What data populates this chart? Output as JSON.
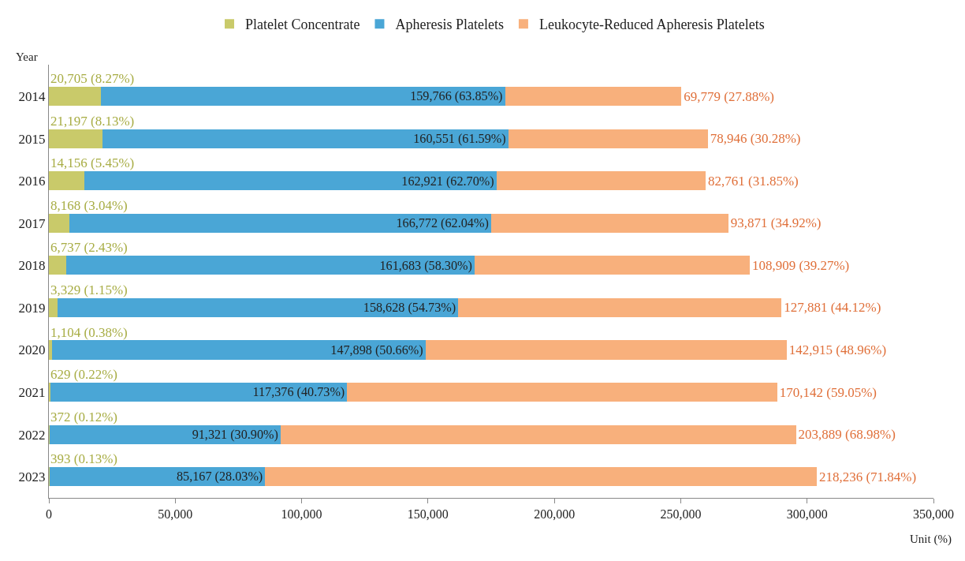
{
  "chart_data": {
    "type": "bar",
    "orientation": "horizontal",
    "stacked": true,
    "ylabel": "Year",
    "xlabel": "Unit (%)",
    "categories": [
      "2014",
      "2015",
      "2016",
      "2017",
      "2018",
      "2019",
      "2020",
      "2021",
      "2022",
      "2023"
    ],
    "series": [
      {
        "name": "Platelet Concentrate",
        "color": "#c9ca6a",
        "values": [
          20705,
          21197,
          14156,
          8168,
          6737,
          3329,
          1104,
          629,
          372,
          393
        ],
        "value_labels": [
          "20,705 (8.27%)",
          "21,197 (8.13%)",
          "14,156 (5.45%)",
          "8,168 (3.04%)",
          "6,737 (2.43%)",
          "3,329 (1.15%)",
          "1,104 (0.38%)",
          "629 (0.22%)",
          "372 (0.12%)",
          "393 (0.13%)"
        ]
      },
      {
        "name": "Apheresis Platelets",
        "color": "#4aa6d6",
        "values": [
          159766,
          160551,
          162921,
          166772,
          161683,
          158628,
          147898,
          117376,
          91321,
          85167
        ],
        "value_labels": [
          "159,766 (63.85%)",
          "160,551 (61.59%)",
          "162,921 (62.70%)",
          "166,772 (62.04%)",
          "161,683 (58.30%)",
          "158,628 (54.73%)",
          "147,898 (50.66%)",
          "117,376 (40.73%)",
          "91,321 (30.90%)",
          "85,167 (28.03%)"
        ]
      },
      {
        "name": "Leukocyte-Reduced Apheresis Platelets",
        "color": "#f8b07c",
        "values": [
          69779,
          78946,
          82761,
          93871,
          108909,
          127881,
          142915,
          170142,
          203889,
          218236
        ],
        "value_labels": [
          "69,779 (27.88%)",
          "78,946 (30.28%)",
          "82,761 (31.85%)",
          "93,871 (34.92%)",
          "108,909 (39.27%)",
          "127,881 (44.12%)",
          "142,915 (48.96%)",
          "170,142 (59.05%)",
          "203,889 (68.98%)",
          "218,236 (71.84%)"
        ]
      }
    ],
    "xlim": [
      0,
      350000
    ],
    "xticks": [
      0,
      {
        "value": 50000,
        "label": "50,000"
      },
      {
        "value": 100000,
        "label": "100,000"
      },
      {
        "value": 150000,
        "label": "150,000"
      },
      {
        "value": 200000,
        "label": "200,000"
      },
      {
        "value": 250000,
        "label": "250,000"
      },
      {
        "value": 300000,
        "label": "300,000"
      },
      {
        "value": 350000,
        "label": "350,000"
      }
    ],
    "legend": "top"
  }
}
